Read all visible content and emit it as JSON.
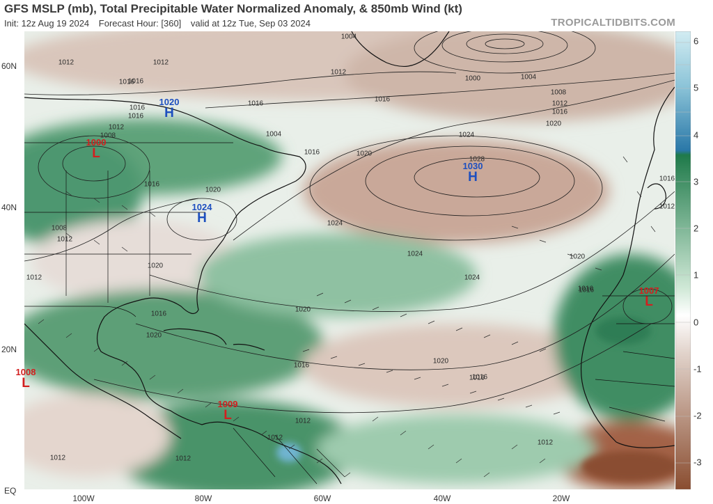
{
  "header": {
    "title": "GFS MSLP (mb), Total Precipitable Water Normalized Anomaly, & 850mb Wind (kt)",
    "init": "Init: 12z Aug 19 2024",
    "forecast_hour": "Forecast Hour: [360]",
    "valid": "valid at 12z Tue, Sep 03 2024",
    "brand": "TROPICALTIDBITS.COM"
  },
  "axes": {
    "lat_labels": [
      "60N",
      "40N",
      "20N",
      "EQ"
    ],
    "lon_labels": [
      "100W",
      "80W",
      "60W",
      "40W",
      "20W"
    ]
  },
  "colorbar": {
    "labels": [
      "6",
      "5",
      "4",
      "3",
      "2",
      "1",
      "0",
      "-1",
      "-2",
      "-3"
    ],
    "colors": {
      "top": "#d2ecf2",
      "blue": "#2a78a8",
      "green_dark": "#1f7a4a",
      "green_light": "#cfe8d6",
      "neutral": "#ffffff",
      "brown_light": "#e2d4cc",
      "brown_dark": "#8a4d30"
    }
  },
  "systems": [
    {
      "type": "H",
      "pressure": "1020"
    },
    {
      "type": "L",
      "pressure": "1000"
    },
    {
      "type": "H",
      "pressure": "1024"
    },
    {
      "type": "H",
      "pressure": "1030"
    },
    {
      "type": "L",
      "pressure": "1007"
    },
    {
      "type": "L",
      "pressure": "1008"
    },
    {
      "type": "L",
      "pressure": "1009"
    }
  ],
  "isobar_labels": [
    "1004",
    "1000",
    "1004",
    "1008",
    "1012",
    "1016",
    "1020",
    "1012",
    "1016",
    "1016",
    "1020",
    "1024",
    "1028",
    "1024",
    "1024",
    "1020",
    "1016",
    "1020",
    "1016",
    "1016",
    "1012",
    "1016",
    "1012",
    "1008",
    "1012",
    "1016",
    "1012",
    "1020",
    "1012",
    "1016",
    "1016",
    "1012",
    "1012",
    "1016",
    "1012",
    "1008",
    "1012",
    "1016",
    "1020",
    "1016",
    "1020",
    "1024",
    "1020",
    "1016",
    "1016",
    "1012",
    "1004",
    "1012",
    "1016"
  ]
}
